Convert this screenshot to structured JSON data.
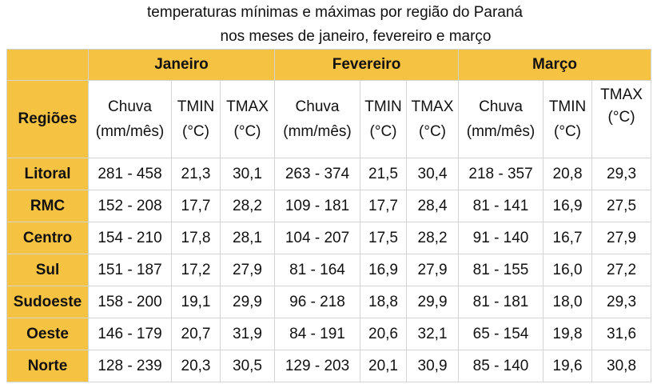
{
  "title_line1": "temperaturas mínimas e máximas por região  do Paraná",
  "title_line2": "nos meses de janeiro, fevereiro e março",
  "months": [
    "Janeiro",
    "Fevereiro",
    "Março"
  ],
  "regions_header": "Regiões",
  "col_headers": {
    "chuva": [
      "Chuva",
      "(mm/mês)"
    ],
    "tmin": [
      "TMIN",
      "(°C)"
    ],
    "tmax": [
      "TMAX",
      "(°C)"
    ]
  },
  "rows": [
    {
      "region": "Litoral",
      "values": [
        "281 - 458",
        "21,3",
        "30,1",
        "263 - 374",
        "21,5",
        "30,4",
        "218 - 357",
        "20,8",
        "29,3"
      ]
    },
    {
      "region": "RMC",
      "values": [
        "152 - 208",
        "17,7",
        "28,2",
        "109 - 181",
        "17,7",
        "28,4",
        "81 - 141",
        "16,9",
        "27,5"
      ]
    },
    {
      "region": "Centro",
      "values": [
        "154 - 210",
        "17,8",
        "28,1",
        "104 - 207",
        "17,5",
        "28,2",
        "91 - 140",
        "16,7",
        "27,9"
      ]
    },
    {
      "region": "Sul",
      "values": [
        "151 - 187",
        "17,2",
        "27,9",
        "81 - 164",
        "16,9",
        "27,9",
        "81 - 155",
        "16,0",
        "27,2"
      ]
    },
    {
      "region": "Sudoeste",
      "values": [
        "158 - 200",
        "19,1",
        "29,9",
        "96 - 218",
        "18,8",
        "29,9",
        "81 - 181",
        "18,0",
        "29,3"
      ]
    },
    {
      "region": "Oeste",
      "values": [
        "146 - 179",
        "20,7",
        "31,9",
        "84 - 191",
        "20,6",
        "32,1",
        "65 - 154",
        "19,8",
        "31,6"
      ]
    },
    {
      "region": "Norte",
      "values": [
        "128 - 239",
        "20,3",
        "30,5",
        "129 - 203",
        "20,1",
        "30,9",
        "85 - 140",
        "19,6",
        "30,8"
      ]
    }
  ],
  "colors": {
    "header_bg": "#f5c242",
    "border": "#d4d4d4"
  }
}
